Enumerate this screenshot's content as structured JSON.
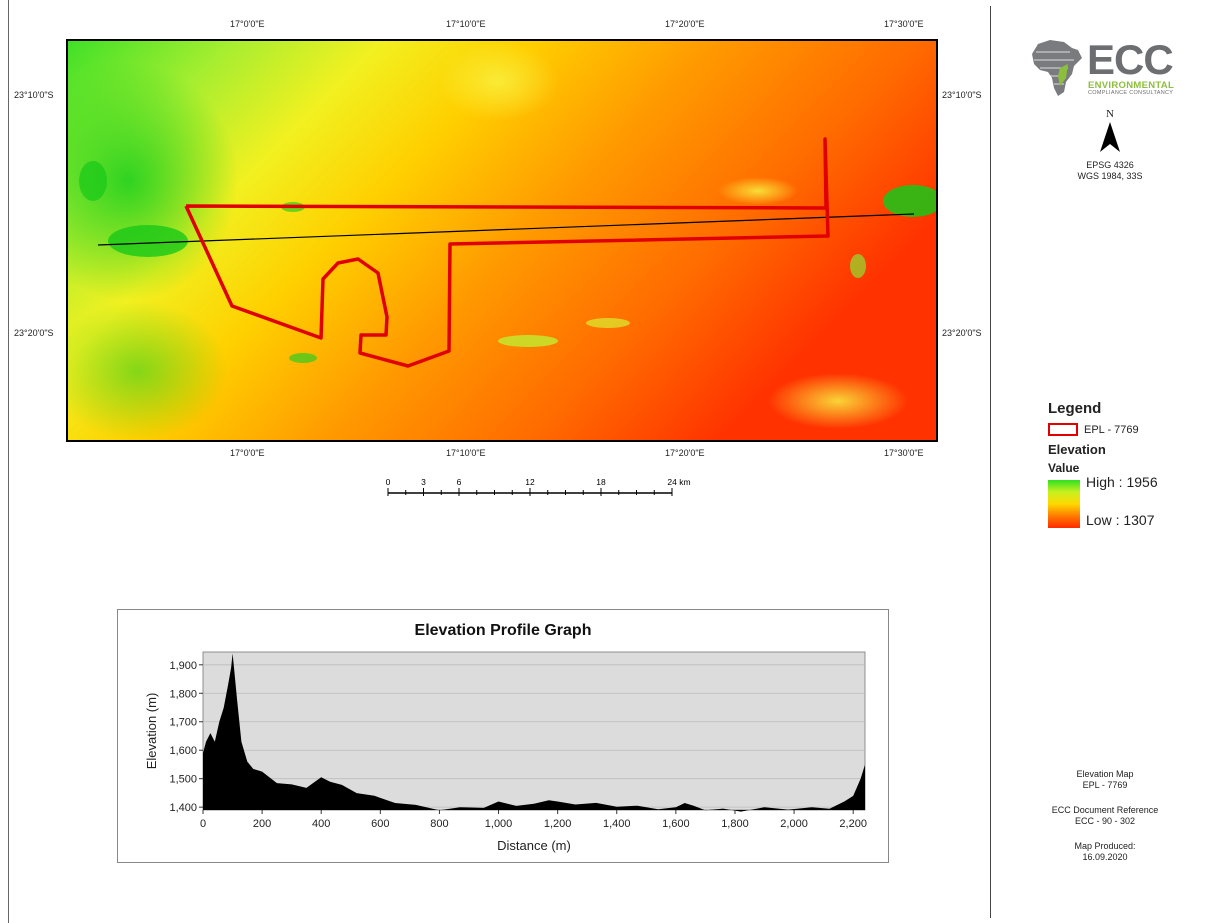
{
  "map": {
    "top_longitude_labels": [
      "17°0'0\"E",
      "17°10'0\"E",
      "17°20'0\"E",
      "17°30'0\"E"
    ],
    "bottom_longitude_labels": [
      "17°0'0\"E",
      "17°10'0\"E",
      "17°20'0\"E",
      "17°30'0\"E"
    ],
    "left_latitude_labels": [
      "23°10'0\"S",
      "23°20'0\"S"
    ],
    "right_latitude_labels": [
      "23°10'0\"S",
      "23°20'0\"S"
    ],
    "boundary_color": "#e00000",
    "profile_line_color": "#000000"
  },
  "scalebar": {
    "ticks": [
      "0",
      "3",
      "6",
      "12",
      "18",
      "24 km"
    ]
  },
  "legend": {
    "title": "Legend",
    "boundary_label": "EPL - 7769",
    "elevation_title": "Elevation",
    "value_label": "Value",
    "high_label": "High : 1956",
    "low_label": "Low : 1307",
    "ramp_colors": [
      "#2fe020",
      "#c8f020",
      "#ffd800",
      "#ff7a00",
      "#ff2a00"
    ]
  },
  "logo": {
    "name": "ECC",
    "line1": "ENVIRONMENTAL",
    "line2": "COMPLIANCE CONSULTANCY",
    "gray": "#6d6e71",
    "green": "#8dbf3f"
  },
  "north_arrow": {
    "label": "N"
  },
  "projection": {
    "line1": "EPSG 4326",
    "line2": "WGS 1984, 33S"
  },
  "title_block": {
    "map_title": "Elevation Map",
    "map_subtitle": "EPL - 7769",
    "doc_ref_label": "ECC Document Reference",
    "doc_ref_value": "ECC - 90 - 302",
    "produced_label": "Map Produced:",
    "produced_date": "16.09.2020"
  },
  "chart_data": {
    "type": "area",
    "title": "Elevation Profile Graph",
    "xlabel": "Distance (m)",
    "ylabel": "Elevation (m)",
    "xlim": [
      0,
      2240
    ],
    "ylim": [
      1390,
      1945
    ],
    "x_ticks": [
      0,
      200,
      400,
      600,
      800,
      1000,
      1200,
      1400,
      1600,
      1800,
      2000,
      2200
    ],
    "x_tick_labels": [
      "0",
      "200",
      "400",
      "600",
      "800",
      "1,000",
      "1,200",
      "1,400",
      "1,600",
      "1,800",
      "2,000",
      "2,200"
    ],
    "y_ticks": [
      1400,
      1500,
      1600,
      1700,
      1800,
      1900
    ],
    "y_tick_labels": [
      "1,400",
      "1,500",
      "1,600",
      "1,700",
      "1,800",
      "1,900"
    ],
    "grid": true,
    "fill_color": "#000000",
    "plot_background": "#dcdcdc",
    "x": [
      0,
      10,
      25,
      40,
      55,
      70,
      85,
      95,
      100,
      105,
      115,
      130,
      150,
      170,
      200,
      250,
      300,
      350,
      400,
      430,
      470,
      520,
      580,
      650,
      720,
      800,
      870,
      950,
      1000,
      1060,
      1120,
      1170,
      1200,
      1260,
      1330,
      1400,
      1470,
      1540,
      1600,
      1630,
      1660,
      1700,
      1760,
      1820,
      1900,
      1980,
      2060,
      2120,
      2170,
      2200,
      2225,
      2240
    ],
    "y": [
      1590,
      1640,
      1660,
      1640,
      1700,
      1760,
      1830,
      1900,
      1940,
      1900,
      1780,
      1640,
      1560,
      1545,
      1525,
      1495,
      1480,
      1478,
      1505,
      1500,
      1478,
      1460,
      1440,
      1425,
      1408,
      1400,
      1400,
      1408,
      1420,
      1415,
      1412,
      1435,
      1420,
      1420,
      1415,
      1412,
      1405,
      1403,
      1400,
      1425,
      1405,
      1400,
      1395,
      1395,
      1400,
      1402,
      1400,
      1405,
      1420,
      1450,
      1500,
      1560
    ]
  }
}
